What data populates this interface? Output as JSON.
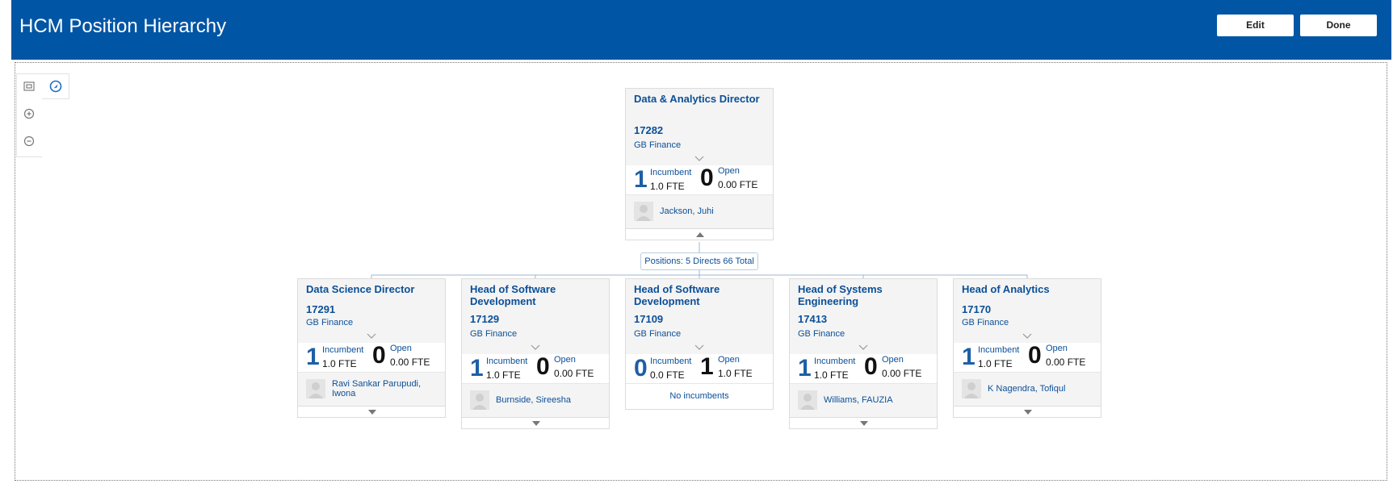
{
  "app": {
    "title": "HCM Position Hierarchy"
  },
  "header": {
    "edit_label": "Edit",
    "done_label": "Done"
  },
  "tools": [
    "fit-icon",
    "navigate-icon",
    "zoom-in-icon",
    "zoom-out-icon"
  ],
  "colors": {
    "header_bg": "#0055a5",
    "link": "#0b4f97",
    "accent": "#1d5fa6"
  },
  "root": {
    "title": "Data & Analytics Director",
    "number": "17282",
    "dept": "GB Finance",
    "incumbent_count": "1",
    "incumbent_label": "Incumbent",
    "incumbent_fte": "1.0 FTE",
    "open_count": "0",
    "open_label": "Open",
    "open_fte": "0.00 FTE",
    "person": "Jackson, Juhi"
  },
  "summary": {
    "label": "Positions: 5 Directs 66 Total"
  },
  "children": [
    {
      "title": "Data Science Director",
      "number": "17291",
      "dept": "GB Finance",
      "incumbent_count": "1",
      "incumbent_label": "Incumbent",
      "incumbent_fte": "1.0 FTE",
      "open_count": "0",
      "open_label": "Open",
      "open_fte": "0.00 FTE",
      "person": "Ravi Sankar Parupudi, Iwona"
    },
    {
      "title": "Head of Software Development",
      "number": "17129",
      "dept": "GB Finance",
      "incumbent_count": "1",
      "incumbent_label": "Incumbent",
      "incumbent_fte": "1.0 FTE",
      "open_count": "0",
      "open_label": "Open",
      "open_fte": "0.00 FTE",
      "person": "Burnside, Sireesha"
    },
    {
      "title": "Head of Software Development",
      "number": "17109",
      "dept": "GB Finance",
      "incumbent_count": "0",
      "incumbent_label": "Incumbent",
      "incumbent_fte": "0.0 FTE",
      "open_count": "1",
      "open_label": "Open",
      "open_fte": "1.0 FTE",
      "person": "No incumbents"
    },
    {
      "title": "Head of Systems Engineering",
      "number": "17413",
      "dept": "GB Finance",
      "incumbent_count": "1",
      "incumbent_label": "Incumbent",
      "incumbent_fte": "1.0 FTE",
      "open_count": "0",
      "open_label": "Open",
      "open_fte": "0.00 FTE",
      "person": "Williams, FAUZIA"
    },
    {
      "title": "Head of Analytics",
      "number": "17170",
      "dept": "GB Finance",
      "incumbent_count": "1",
      "incumbent_label": "Incumbent",
      "incumbent_fte": "1.0 FTE",
      "open_count": "0",
      "open_label": "Open",
      "open_fte": "0.00 FTE",
      "person": "K Nagendra, Tofiqul"
    }
  ]
}
